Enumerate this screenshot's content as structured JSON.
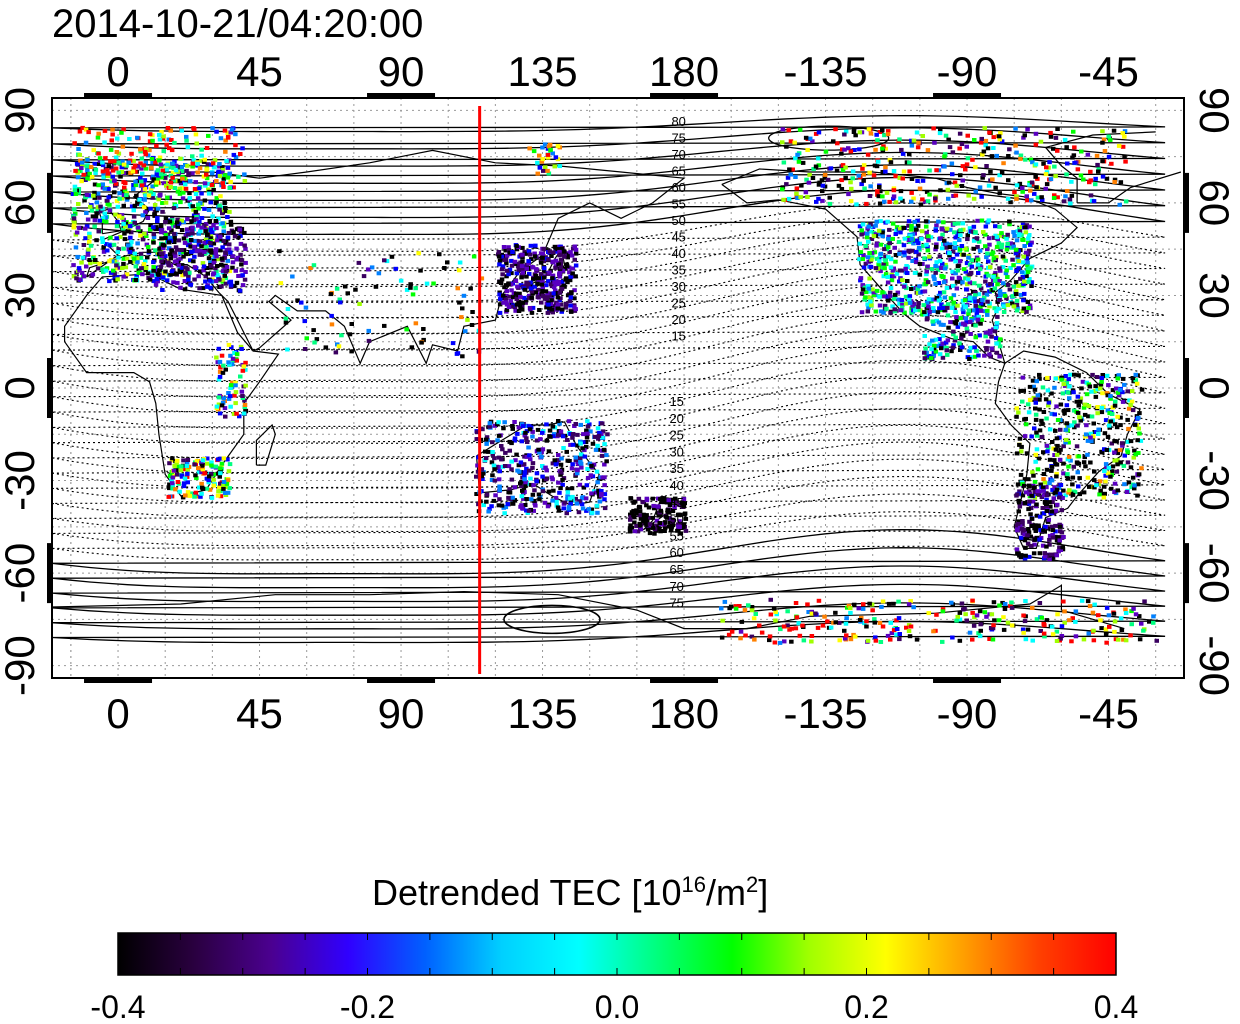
{
  "title": "2014-10-21/04:20:00",
  "map": {
    "lon_ticks_top": [
      "0",
      "45",
      "90",
      "135",
      "180",
      "-135",
      "-90",
      "-45"
    ],
    "lon_ticks_bottom": [
      "0",
      "45",
      "90",
      "135",
      "180",
      "-135",
      "-90",
      "-45"
    ],
    "lat_ticks_left": [
      "90",
      "60",
      "30",
      "0",
      "-30",
      "-60",
      "-90"
    ],
    "lat_ticks_right": [
      "90",
      "60",
      "30",
      "0",
      "-30",
      "-60",
      "-90"
    ],
    "contour_labels_north": [
      "80",
      "75",
      "70",
      "65",
      "60",
      "55",
      "50",
      "45",
      "40",
      "35",
      "30",
      "25",
      "20",
      "15"
    ],
    "contour_labels_south": [
      "15",
      "20",
      "25",
      "30",
      "35",
      "40",
      "45",
      "50",
      "55",
      "60",
      "65",
      "70",
      "75"
    ],
    "marker_longitude": 115,
    "marker_color": "#ff0000"
  },
  "colorbar": {
    "title_main": "Detrended TEC  [10",
    "title_exp1": "16",
    "title_mid": "/m",
    "title_exp2": "2",
    "title_end": "]",
    "ticks": [
      "-0.4",
      "-0.2",
      "0.0",
      "0.2",
      "0.4"
    ],
    "range": [
      -0.4,
      0.4
    ],
    "colors": [
      "#000000",
      "#3a0060",
      "#5a00c0",
      "#0000ff",
      "#0080ff",
      "#00ffff",
      "#00ff80",
      "#00ff00",
      "#a0ff00",
      "#ffff00",
      "#ff8000",
      "#ff0000"
    ]
  }
}
